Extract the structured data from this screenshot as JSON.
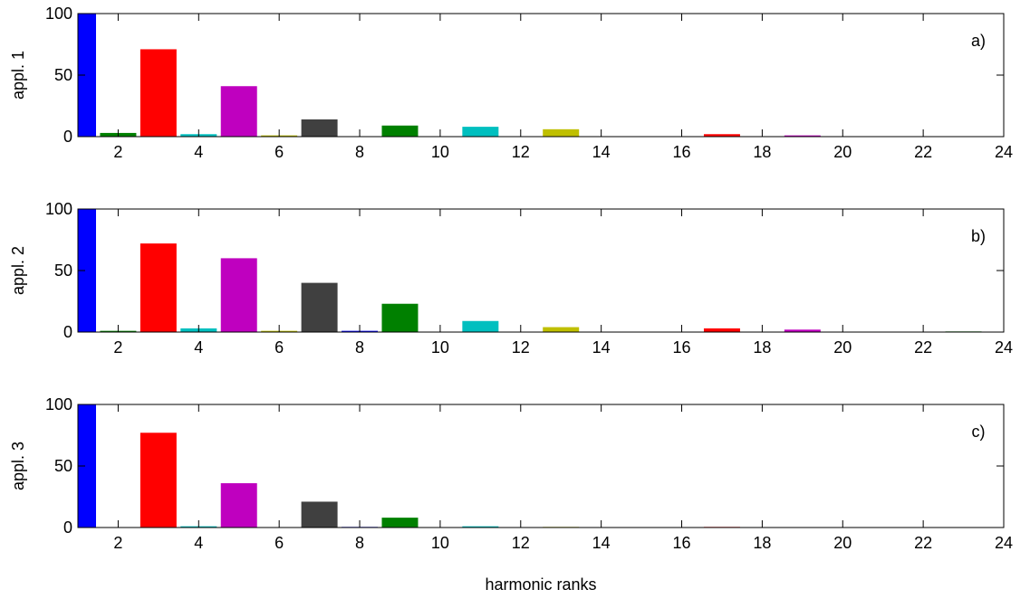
{
  "figure": {
    "xlabel": "harmonic ranks"
  },
  "chart_data": [
    {
      "type": "bar",
      "panel_label": "a)",
      "ylabel": "appl. 1",
      "xlim": [
        1,
        24
      ],
      "ylim": [
        0,
        100
      ],
      "xticks": [
        2,
        4,
        6,
        8,
        10,
        12,
        14,
        16,
        18,
        20,
        22,
        24
      ],
      "yticks": [
        0,
        50,
        100
      ],
      "harmonics": [
        1,
        2,
        3,
        4,
        5,
        6,
        7,
        8,
        9,
        10,
        11,
        12,
        13,
        14,
        15,
        16,
        17,
        18,
        19,
        20,
        21,
        22,
        23,
        24
      ],
      "values": [
        100,
        3,
        71,
        2,
        41,
        1,
        14,
        0.3,
        9,
        0.3,
        8,
        0.3,
        6,
        0.3,
        0.3,
        0.3,
        2,
        0.3,
        1,
        0.3,
        0.3,
        0.3,
        0.3,
        0.3
      ]
    },
    {
      "type": "bar",
      "panel_label": "b)",
      "ylabel": "appl. 2",
      "xlim": [
        1,
        24
      ],
      "ylim": [
        0,
        100
      ],
      "xticks": [
        2,
        4,
        6,
        8,
        10,
        12,
        14,
        16,
        18,
        20,
        22,
        24
      ],
      "yticks": [
        0,
        50,
        100
      ],
      "harmonics": [
        1,
        2,
        3,
        4,
        5,
        6,
        7,
        8,
        9,
        10,
        11,
        12,
        13,
        14,
        15,
        16,
        17,
        18,
        19,
        20,
        21,
        22,
        23,
        24
      ],
      "values": [
        100,
        1,
        72,
        3,
        60,
        1,
        40,
        1,
        23,
        0.3,
        9,
        0.3,
        4,
        0.3,
        0.3,
        0.3,
        3,
        0.3,
        2,
        0.3,
        0.3,
        0.3,
        0.5,
        0.3
      ]
    },
    {
      "type": "bar",
      "panel_label": "c)",
      "ylabel": "appl. 3",
      "xlim": [
        1,
        24
      ],
      "ylim": [
        0,
        100
      ],
      "xticks": [
        2,
        4,
        6,
        8,
        10,
        12,
        14,
        16,
        18,
        20,
        22,
        24
      ],
      "yticks": [
        0,
        50,
        100
      ],
      "harmonics": [
        1,
        2,
        3,
        4,
        5,
        6,
        7,
        8,
        9,
        10,
        11,
        12,
        13,
        14,
        15,
        16,
        17,
        18,
        19,
        20,
        21,
        22,
        23,
        24
      ],
      "values": [
        100,
        0.3,
        77,
        1,
        36,
        0.3,
        21,
        0.5,
        8,
        0.3,
        1,
        0.3,
        0.5,
        0.3,
        0.3,
        0.3,
        0.5,
        0.3,
        0.3,
        0.3,
        0.3,
        0.3,
        0.3,
        0.3
      ]
    }
  ],
  "bar_colors": [
    "#0000ff",
    "#008000",
    "#ff0000",
    "#00bfbf",
    "#bf00bf",
    "#bfbf00",
    "#404040"
  ]
}
